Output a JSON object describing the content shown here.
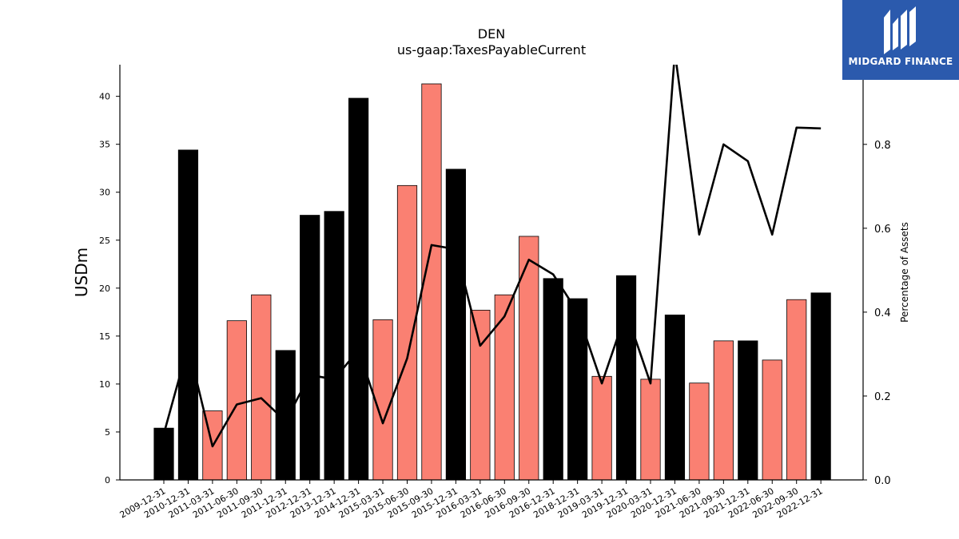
{
  "chart_data": {
    "type": "bar",
    "title": "DEN",
    "subtitle": "us-gaap:TaxesPayableCurrent",
    "ylabel": "USDm",
    "y2label": "Percentage of Assets",
    "ylim": [
      0,
      43.3
    ],
    "y2lim": [
      0,
      0.99
    ],
    "yticks": [
      0,
      5,
      10,
      15,
      20,
      25,
      30,
      35,
      40
    ],
    "y2ticks": [
      0.0,
      0.2,
      0.4,
      0.6,
      0.8
    ],
    "grid": false,
    "categories": [
      "2009-12-31",
      "2010-12-31",
      "2011-03-31",
      "2011-06-30",
      "2011-09-30",
      "2011-12-31",
      "2012-12-31",
      "2013-12-31",
      "2014-12-31",
      "2015-03-31",
      "2015-06-30",
      "2015-09-30",
      "2015-12-31",
      "2016-03-31",
      "2016-06-30",
      "2016-09-30",
      "2016-12-31",
      "2018-12-31",
      "2019-03-31",
      "2019-12-31",
      "2020-03-31",
      "2020-12-31",
      "2021-06-30",
      "2021-09-30",
      "2021-12-31",
      "2022-06-30",
      "2022-09-30",
      "2022-12-31"
    ],
    "series": [
      {
        "kind": "bar",
        "values": [
          5.4,
          34.4,
          7.2,
          16.6,
          19.3,
          13.5,
          27.6,
          28.0,
          39.8,
          16.7,
          30.7,
          41.3,
          32.4,
          17.7,
          19.3,
          25.4,
          21.0,
          18.9,
          10.8,
          21.3,
          10.5,
          17.2,
          10.1,
          14.5,
          14.5,
          12.5,
          18.8,
          19.5
        ],
        "colors": [
          "#000000",
          "#000000",
          "#fa8072",
          "#fa8072",
          "#fa8072",
          "#000000",
          "#000000",
          "#000000",
          "#000000",
          "#fa8072",
          "#fa8072",
          "#fa8072",
          "#000000",
          "#fa8072",
          "#fa8072",
          "#fa8072",
          "#000000",
          "#000000",
          "#fa8072",
          "#000000",
          "#fa8072",
          "#000000",
          "#fa8072",
          "#fa8072",
          "#000000",
          "#fa8072",
          "#fa8072",
          "#000000"
        ]
      },
      {
        "kind": "line",
        "axis": "right",
        "color": "#000000",
        "values": [
          0.11,
          0.32,
          0.08,
          0.18,
          0.195,
          0.14,
          0.25,
          0.24,
          0.31,
          0.135,
          0.29,
          0.56,
          0.55,
          0.32,
          0.39,
          0.525,
          0.49,
          0.4,
          0.23,
          0.4,
          0.23,
          1.02,
          0.585,
          0.8,
          0.76,
          0.585,
          0.84,
          0.838
        ]
      }
    ]
  },
  "logo": {
    "text": "MIDGARD FINANCE",
    "color": "#2b5aad",
    "icon": "midgard-logo-icon"
  }
}
